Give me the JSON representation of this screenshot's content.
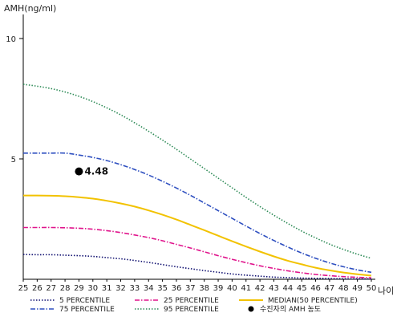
{
  "chart_data": {
    "type": "line",
    "ylabel": "AMH(ng/ml)",
    "xlabel": "나이",
    "xlim": [
      25,
      50
    ],
    "ylim": [
      0,
      11
    ],
    "x": [
      25,
      26,
      27,
      28,
      29,
      30,
      31,
      32,
      33,
      34,
      35,
      36,
      37,
      38,
      39,
      40,
      41,
      42,
      43,
      44,
      45,
      46,
      47,
      48,
      49,
      50
    ],
    "x_tick_labels": [
      "25",
      "26",
      "27",
      "28",
      "29",
      "30",
      "31",
      "32",
      "33",
      "34",
      "35",
      "36",
      "37",
      "38",
      "39",
      "40",
      "41",
      "42",
      "43",
      "44",
      "45",
      "46",
      "47",
      "48",
      "49",
      "50"
    ],
    "y_ticks": [
      5,
      10
    ],
    "y_tick_labels": [
      "5",
      "10"
    ],
    "series": [
      {
        "name": "5 PERCENTILE",
        "color": "#101070",
        "style": "dotted",
        "values": [
          1.03,
          1.02,
          1.02,
          1.0,
          0.98,
          0.95,
          0.9,
          0.85,
          0.78,
          0.7,
          0.61,
          0.52,
          0.44,
          0.36,
          0.29,
          0.22,
          0.17,
          0.13,
          0.09,
          0.07,
          0.05,
          0.04,
          0.03,
          0.02,
          0.02,
          0.01
        ]
      },
      {
        "name": "25 PERCENTILE",
        "color": "#e0148c",
        "style": "dashdot",
        "values": [
          2.15,
          2.15,
          2.15,
          2.14,
          2.12,
          2.08,
          2.02,
          1.94,
          1.84,
          1.73,
          1.6,
          1.45,
          1.3,
          1.14,
          0.98,
          0.83,
          0.69,
          0.56,
          0.45,
          0.35,
          0.27,
          0.2,
          0.15,
          0.11,
          0.08,
          0.06
        ]
      },
      {
        "name": "MEDIAN(50 PERCENTILE)",
        "color": "#f2c200",
        "style": "solid",
        "values": [
          3.48,
          3.48,
          3.47,
          3.45,
          3.41,
          3.35,
          3.26,
          3.15,
          3.02,
          2.86,
          2.68,
          2.48,
          2.26,
          2.04,
          1.81,
          1.58,
          1.36,
          1.15,
          0.95,
          0.77,
          0.62,
          0.48,
          0.37,
          0.28,
          0.21,
          0.15
        ]
      },
      {
        "name": "75 PERCENTILE",
        "color": "#2e4fc0",
        "style": "dashdot",
        "values": [
          5.24,
          5.24,
          5.24,
          5.24,
          5.16,
          5.06,
          4.93,
          4.76,
          4.56,
          4.33,
          4.07,
          3.79,
          3.49,
          3.17,
          2.85,
          2.53,
          2.21,
          1.9,
          1.61,
          1.34,
          1.09,
          0.87,
          0.68,
          0.52,
          0.39,
          0.29
        ]
      },
      {
        "name": "95 PERCENTILE",
        "color": "#2e8b57",
        "style": "dotted",
        "values": [
          8.1,
          8.02,
          7.92,
          7.78,
          7.6,
          7.38,
          7.12,
          6.83,
          6.5,
          6.15,
          5.78,
          5.4,
          5.0,
          4.6,
          4.2,
          3.8,
          3.4,
          3.02,
          2.66,
          2.32,
          2.0,
          1.72,
          1.46,
          1.24,
          1.04,
          0.87
        ]
      }
    ],
    "patient_point": {
      "label": "수진자의 AMH 농도",
      "x": 29,
      "y": 4.48,
      "value_label": "4.48",
      "color": "#000000"
    },
    "grid": false,
    "legend": "bottom"
  }
}
